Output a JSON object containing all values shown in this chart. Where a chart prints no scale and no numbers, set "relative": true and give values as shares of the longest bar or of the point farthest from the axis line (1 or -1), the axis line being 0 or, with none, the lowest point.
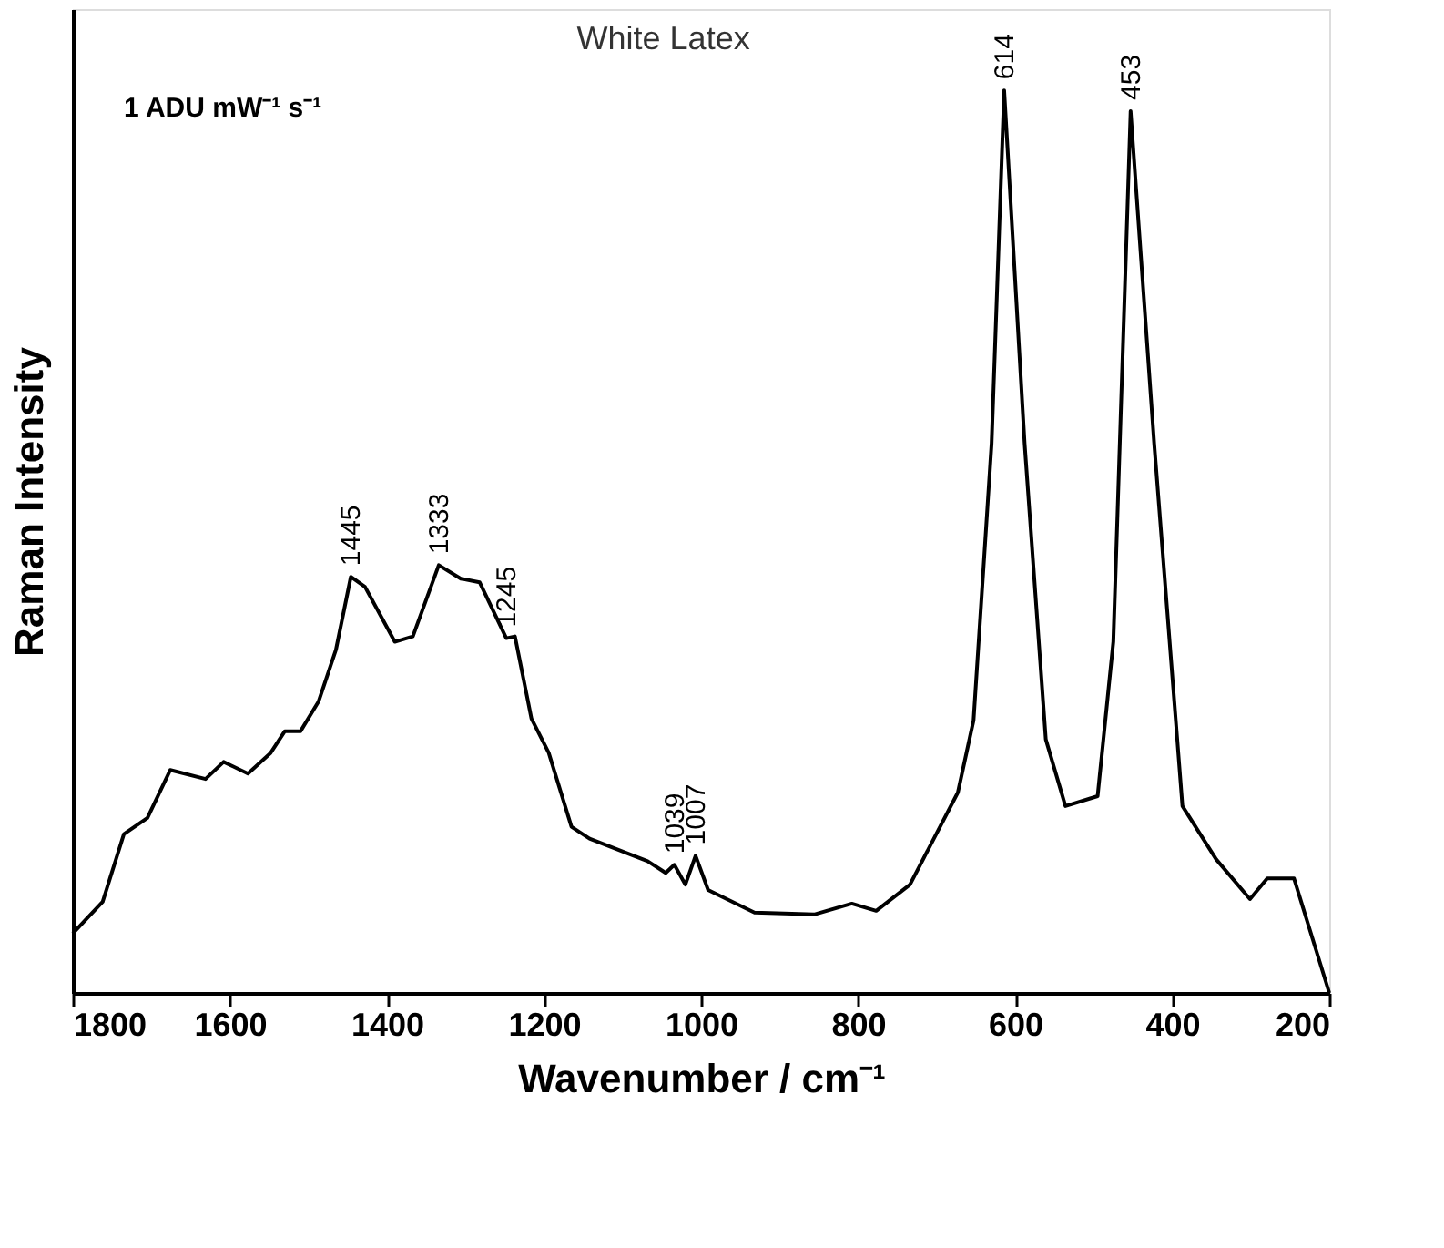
{
  "chart_data": {
    "type": "line",
    "relative": true,
    "title": "White Latex",
    "xlabel": "Wavenumber / cm⁻¹",
    "ylabel": "Raman Intensity",
    "xlim": [
      1800,
      200
    ],
    "xticks": [
      1800,
      1600,
      1400,
      1200,
      1000,
      800,
      600,
      400,
      200
    ],
    "grid": false,
    "marker": "none",
    "line_style": "solid",
    "series": [
      {
        "color": "#000000",
        "x": [
          1800,
          1762,
          1735,
          1705,
          1676,
          1631,
          1608,
          1577,
          1548,
          1530,
          1510,
          1487,
          1465,
          1446,
          1428,
          1390,
          1367,
          1334,
          1306,
          1282,
          1248,
          1237,
          1216,
          1194,
          1165,
          1142,
          1068,
          1045,
          1034,
          1020,
          1007,
          991,
          932,
          856,
          808,
          777,
          734,
          673,
          653,
          630,
          614,
          588,
          561,
          536,
          495,
          475,
          453,
          423,
          387,
          344,
          301,
          279,
          245,
          200
        ],
        "values": [
          0.066,
          0.101,
          0.176,
          0.194,
          0.247,
          0.237,
          0.256,
          0.243,
          0.266,
          0.29,
          0.29,
          0.323,
          0.38,
          0.461,
          0.45,
          0.389,
          0.395,
          0.474,
          0.459,
          0.455,
          0.393,
          0.395,
          0.304,
          0.266,
          0.184,
          0.171,
          0.146,
          0.133,
          0.142,
          0.12,
          0.152,
          0.114,
          0.089,
          0.087,
          0.099,
          0.091,
          0.12,
          0.222,
          0.302,
          0.609,
          1.0,
          0.609,
          0.281,
          0.207,
          0.218,
          0.389,
          0.977,
          0.609,
          0.207,
          0.148,
          0.104,
          0.127,
          0.127,
          0.0
        ]
      }
    ],
    "annotations": [
      "1 ADU mW⁻¹ s⁻¹",
      {
        "text": "1445",
        "x": 1446,
        "y": 0.461
      },
      {
        "text": "1333",
        "x": 1334,
        "y": 0.474
      },
      {
        "text": "1245",
        "x": 1248,
        "y": 0.393
      },
      {
        "text": "1039",
        "x": 1034,
        "y": 0.142
      },
      {
        "text": "1007",
        "x": 1007,
        "y": 0.152
      },
      {
        "text": "614",
        "x": 614,
        "y": 1.0
      },
      {
        "text": "453",
        "x": 453,
        "y": 0.977
      }
    ]
  }
}
